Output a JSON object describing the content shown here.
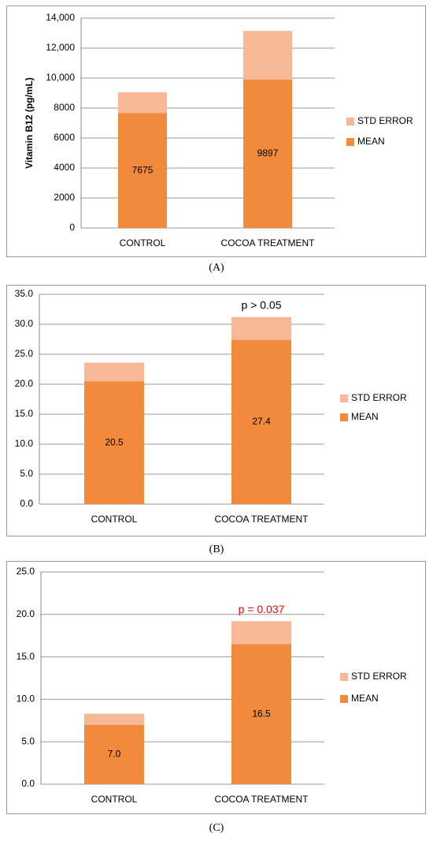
{
  "chart_data": [
    {
      "type": "bar",
      "stacked": true,
      "caption": "(A)",
      "ylabel": "Vitamin B12 (pg/mL)",
      "categories": [
        "CONTROL",
        "COCOA TREATMENT"
      ],
      "series": [
        {
          "name": "MEAN",
          "color": "#f28a3c",
          "values": [
            7675,
            9897
          ]
        },
        {
          "name": "STD ERROR",
          "color": "#f9b895",
          "values": [
            1375,
            3250
          ]
        }
      ],
      "ylim": [
        0,
        14000
      ],
      "yticks": [
        0,
        2000,
        4000,
        6000,
        8000,
        {
          "value": 10000,
          "label": "10,000"
        },
        {
          "value": 12000,
          "label": "12,000"
        },
        {
          "value": 14000,
          "label": "14,000"
        }
      ],
      "grid": true,
      "legend": "right"
    },
    {
      "type": "bar",
      "stacked": true,
      "caption": "(B)",
      "categories": [
        "CONTROL",
        "COCOA TREATMENT"
      ],
      "series": [
        {
          "name": "MEAN",
          "color": "#f28a3c",
          "values": [
            20.5,
            27.4
          ],
          "value_labels": [
            "20.5",
            "27.4"
          ]
        },
        {
          "name": "STD ERROR",
          "color": "#f9b895",
          "values": [
            3.1,
            3.8
          ]
        }
      ],
      "ylim": [
        0,
        35
      ],
      "yticks": [
        {
          "value": 0,
          "label": "0.0"
        },
        {
          "value": 5,
          "label": "5.0"
        },
        {
          "value": 10,
          "label": "10.0"
        },
        {
          "value": 15,
          "label": "15.0"
        },
        {
          "value": 20,
          "label": "20.0"
        },
        {
          "value": 25,
          "label": "25.0"
        },
        {
          "value": 30,
          "label": "30.0"
        },
        {
          "value": 35,
          "label": "35.0"
        }
      ],
      "annotation": {
        "text": "p > 0.05",
        "color": "#000000"
      },
      "grid": true,
      "legend": "right"
    },
    {
      "type": "bar",
      "stacked": true,
      "caption": "(C)",
      "categories": [
        "CONTROL",
        "COCOA TREATMENT"
      ],
      "series": [
        {
          "name": "MEAN",
          "color": "#f28a3c",
          "values": [
            7.0,
            16.5
          ],
          "value_labels": [
            "7.0",
            "16.5"
          ]
        },
        {
          "name": "STD ERROR",
          "color": "#f9b895",
          "values": [
            1.3,
            2.7
          ]
        }
      ],
      "ylim": [
        0,
        25
      ],
      "yticks": [
        {
          "value": 0,
          "label": "0.0"
        },
        {
          "value": 5,
          "label": "5.0"
        },
        {
          "value": 10,
          "label": "10.0"
        },
        {
          "value": 15,
          "label": "15.0"
        },
        {
          "value": 20,
          "label": "20.0"
        },
        {
          "value": 25,
          "label": "25.0"
        }
      ],
      "annotation": {
        "text": "p = 0.037",
        "color": "#ff0000"
      },
      "grid": true,
      "legend": "right"
    }
  ]
}
